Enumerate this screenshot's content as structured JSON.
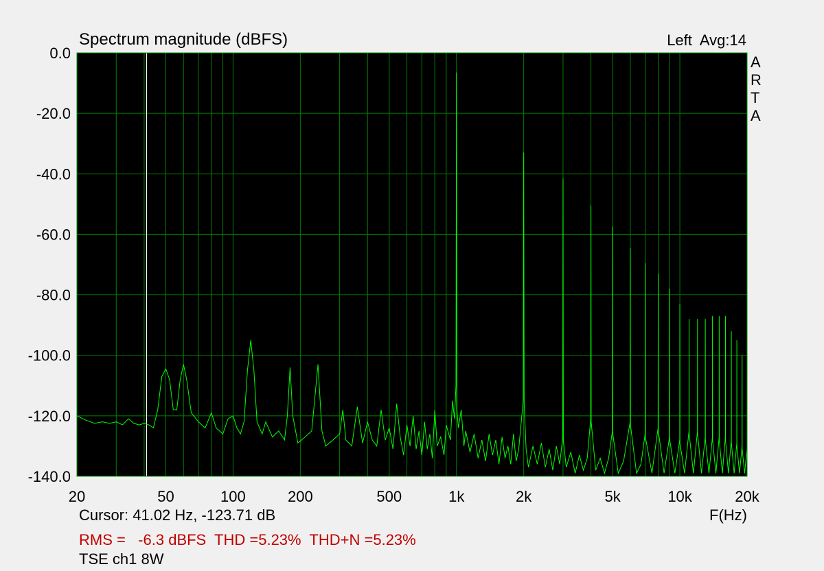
{
  "chart_data": {
    "type": "line",
    "title": "Spectrum magnitude (dBFS)",
    "channel_label": "Left  Avg:14",
    "brand": "ARTA",
    "x_label": "F(Hz)",
    "cursor_label": "Cursor: 41.02 Hz, -123.71 dB",
    "cursor_x": 41.02,
    "stats": "RMS =   -6.3 dBFS  THD =5.23%  THD+N =5.23%",
    "footer": "TSE ch1 8W",
    "x_log": true,
    "grid": true,
    "xlim": [
      20,
      20000
    ],
    "ylim": [
      -140,
      0
    ],
    "yticks": [
      {
        "value": 0,
        "label": "0.0"
      },
      {
        "value": -20,
        "label": "-20.0"
      },
      {
        "value": -40,
        "label": "-40.0"
      },
      {
        "value": -60,
        "label": "-60.0"
      },
      {
        "value": -80,
        "label": "-80.0"
      },
      {
        "value": -100,
        "label": "-100.0"
      },
      {
        "value": -120,
        "label": "-120.0"
      },
      {
        "value": -140,
        "label": "-140.0"
      }
    ],
    "xticks": [
      20,
      50,
      100,
      200,
      500,
      {
        "value": 1000,
        "label": "1k"
      },
      {
        "value": 2000,
        "label": "2k"
      },
      {
        "value": 5000,
        "label": "5k"
      },
      {
        "value": 10000,
        "label": "10k"
      },
      {
        "value": 20000,
        "label": "20k"
      }
    ],
    "x_minor_grid": [
      30,
      40,
      60,
      70,
      80,
      90,
      300,
      400,
      600,
      700,
      800,
      900,
      3000,
      4000,
      6000,
      7000,
      8000,
      9000
    ],
    "x": [
      20,
      22,
      24,
      26,
      28,
      30,
      32,
      34,
      36,
      38,
      40,
      42,
      44,
      46,
      48,
      50,
      52,
      54,
      56,
      58,
      60,
      62,
      65,
      70,
      75,
      80,
      84,
      90,
      95,
      100,
      104,
      108,
      112,
      116,
      120,
      124,
      128,
      135,
      140,
      150,
      160,
      170,
      175,
      180,
      185,
      195,
      210,
      225,
      240,
      250,
      260,
      280,
      300,
      310,
      320,
      340,
      360,
      380,
      400,
      420,
      440,
      460,
      480,
      500,
      520,
      540,
      560,
      580,
      600,
      620,
      640,
      660,
      680,
      700,
      720,
      740,
      760,
      780,
      800,
      820,
      850,
      880,
      900,
      940,
      960,
      980,
      995,
      1000,
      1005,
      1020,
      1050,
      1080,
      1100,
      1150,
      1200,
      1250,
      1300,
      1350,
      1400,
      1450,
      1500,
      1550,
      1600,
      1650,
      1700,
      1750,
      1800,
      1850,
      1900,
      1950,
      1990,
      2000,
      2010,
      2050,
      2100,
      2200,
      2300,
      2400,
      2500,
      2600,
      2700,
      2800,
      2900,
      2990,
      3000,
      3010,
      3100,
      3250,
      3400,
      3550,
      3700,
      3850,
      3990,
      4000,
      4010,
      4200,
      4400,
      4600,
      4800,
      4990,
      5000,
      5010,
      5300,
      5600,
      5990,
      6000,
      6010,
      6400,
      6700,
      6990,
      7000,
      7010,
      7500,
      7990,
      8000,
      8010,
      8500,
      8990,
      9000,
      9010,
      9500,
      9990,
      10000,
      10010,
      10500,
      10990,
      11000,
      11010,
      11500,
      11990,
      12000,
      12010,
      12500,
      12990,
      13000,
      13010,
      13500,
      13990,
      14000,
      14010,
      14500,
      14990,
      15000,
      15010,
      15500,
      15990,
      16000,
      16010,
      16500,
      16990,
      17000,
      17010,
      17500,
      17990,
      18000,
      18010,
      18500,
      18990,
      19000,
      19010,
      19500,
      19990,
      20000
    ],
    "series": [
      {
        "name": "Left",
        "color": "#00ff00",
        "values": [
          -120,
          -121.5,
          -122.5,
          -122,
          -122.5,
          -122,
          -123,
          -121,
          -122.5,
          -123,
          -122.5,
          -123,
          -124,
          -118,
          -107,
          -104.5,
          -108,
          -118,
          -118,
          -108,
          -103,
          -108,
          -119,
          -122,
          -124,
          -119,
          -124,
          -126,
          -121,
          -120,
          -124,
          -126,
          -122,
          -105,
          -95,
          -105,
          -122,
          -126,
          -122,
          -127,
          -125,
          -128,
          -120,
          -104,
          -120,
          -129,
          -127,
          -125,
          -103,
          -125,
          -130,
          -128,
          -126,
          -118,
          -128,
          -130,
          -117,
          -129,
          -122,
          -128,
          -130,
          -118,
          -128,
          -124,
          -131,
          -116,
          -127,
          -133,
          -123,
          -130,
          -120,
          -131,
          -125,
          -133,
          -122,
          -131,
          -126,
          -134,
          -118,
          -130,
          -127,
          -133,
          -123,
          -128,
          -115,
          -121,
          -110,
          -6.5,
          -118,
          -124,
          -118,
          -130,
          -125,
          -132,
          -126,
          -134,
          -128,
          -135,
          -126,
          -133,
          -128,
          -136,
          -127,
          -134,
          -130,
          -136,
          -126,
          -135,
          -131,
          -122,
          -115,
          -33,
          -116,
          -131,
          -137,
          -130,
          -136,
          -129,
          -137,
          -131,
          -138,
          -130,
          -136,
          -127,
          -41.5,
          -128,
          -137,
          -132,
          -139,
          -133,
          -138,
          -134,
          -121,
          -50.5,
          -122,
          -138,
          -134,
          -139,
          -134,
          -125,
          -57.5,
          -126,
          -139,
          -135,
          -122,
          -64.5,
          -123,
          -139,
          -136,
          -126,
          -69.5,
          -127,
          -139,
          -124,
          -73,
          -125,
          -139,
          -127,
          -78,
          -128,
          -139,
          -128,
          -83,
          -129,
          -139,
          -125,
          -88,
          -126,
          -139,
          -125,
          -88,
          -126,
          -139,
          -127,
          -88,
          -128,
          -139,
          -127,
          -87,
          -128,
          -139,
          -127,
          -87,
          -128,
          -139,
          -127,
          -87,
          -128,
          -139,
          -128,
          -92,
          -129,
          -139,
          -129,
          -95,
          -130,
          -139,
          -130,
          -100,
          -131,
          -139,
          -131,
          -103
        ]
      }
    ]
  }
}
